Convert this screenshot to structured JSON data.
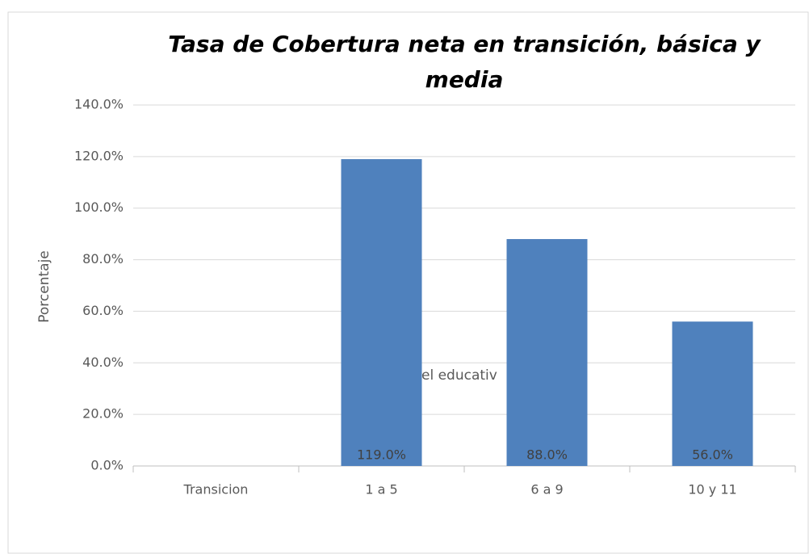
{
  "chart_data": {
    "type": "bar",
    "title": "Tasa de Cobertura neta en transición, básica y media",
    "y_label": "Porcentaje",
    "annotation": "el educativ",
    "categories": [
      "Transicion",
      "1 a 5",
      "6 a 9",
      "10 y 11"
    ],
    "values": [
      0,
      119,
      88,
      56
    ],
    "value_labels": [
      null,
      "119.0%",
      "88.0%",
      "56.0%"
    ],
    "color": "#4f81bd",
    "ylim": [
      0,
      140
    ],
    "yticks": [
      {
        "value": 0,
        "label": "0.0%"
      },
      {
        "value": 20,
        "label": "20.0%"
      },
      {
        "value": 40,
        "label": "40.0%"
      },
      {
        "value": 60,
        "label": "60.0%"
      },
      {
        "value": 80,
        "label": "80.0%"
      },
      {
        "value": 100,
        "label": "100.0%"
      },
      {
        "value": 120,
        "label": "120.0%"
      },
      {
        "value": 140,
        "label": "140.0%"
      }
    ],
    "grid": true
  }
}
